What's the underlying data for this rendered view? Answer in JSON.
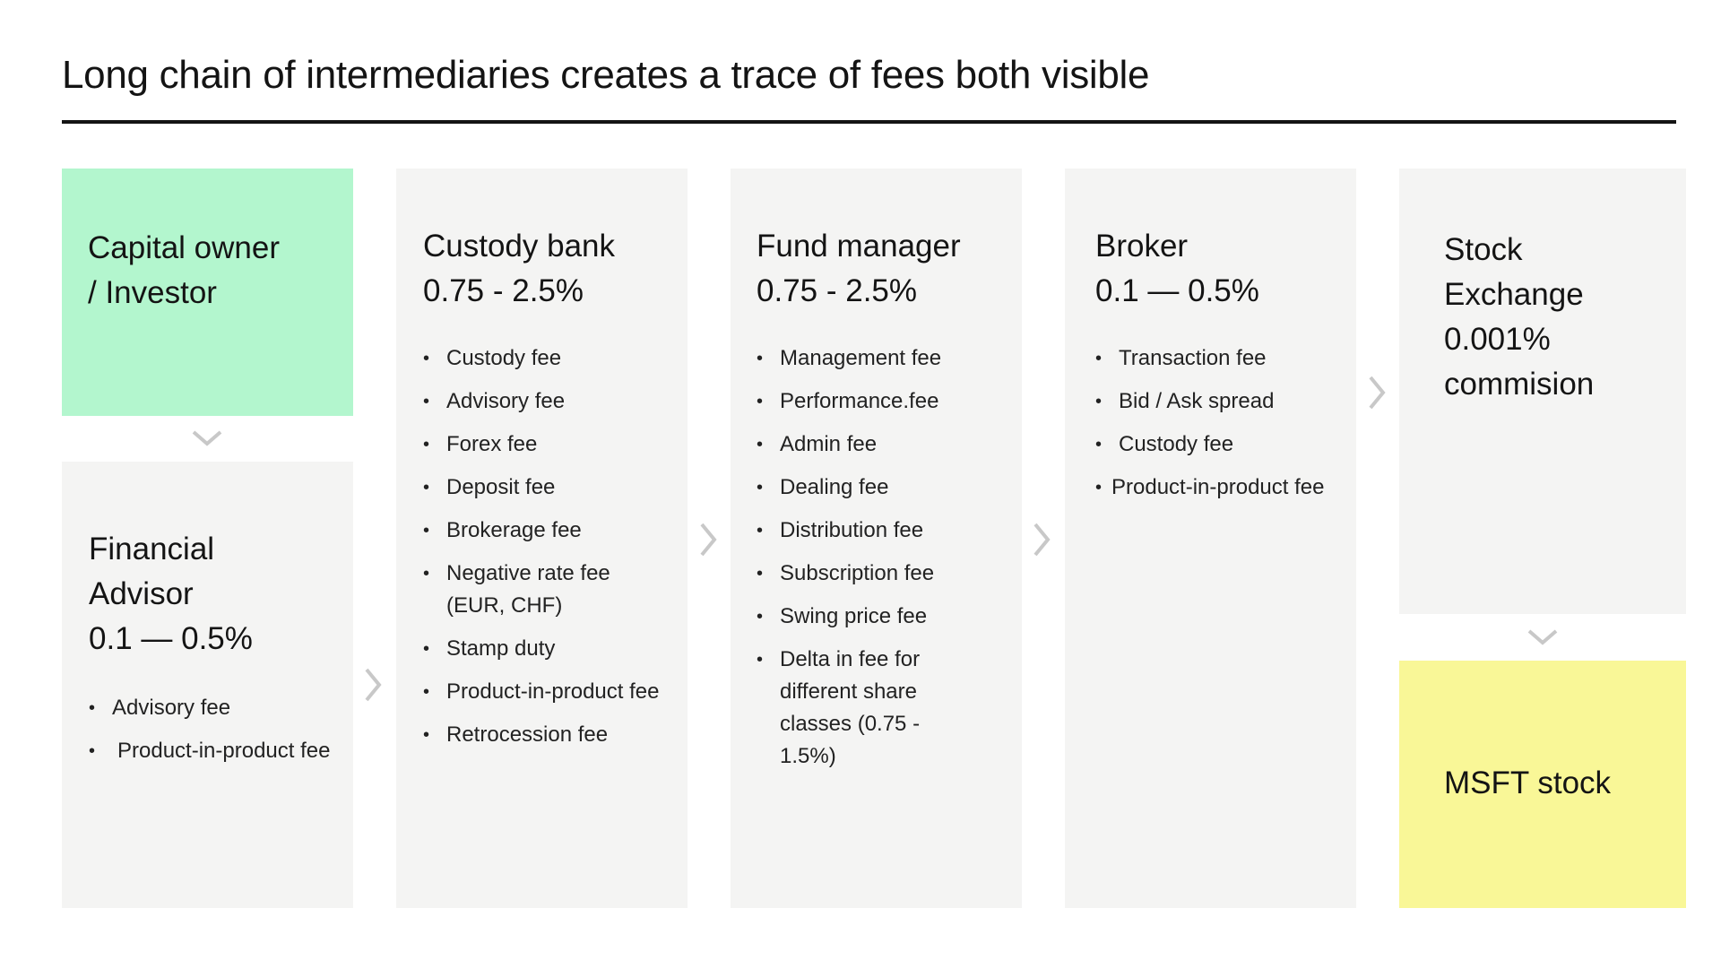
{
  "title": "Long chain of intermediaries creates a trace of fees both visible",
  "colors": {
    "investor_card": "#b3f6ce",
    "stock_card": "#f9f797",
    "neutral_card": "#f4f4f3",
    "arrow": "#c8c8c8",
    "text": "#141414"
  },
  "investor": {
    "line1": "Capital owner",
    "line2": "/ Investor"
  },
  "advisor": {
    "line1": "Financial",
    "line2": "Advisor",
    "rate": "0.1 — 0.5%",
    "fees": [
      "Advisory fee",
      "Product-in-product fee"
    ]
  },
  "custody": {
    "name": "Custody bank",
    "rate": "0.75 - 2.5%",
    "fees": [
      "Custody fee",
      "Advisory fee",
      "Forex fee",
      "Deposit fee",
      "Brokerage fee",
      "Negative rate fee (EUR, CHF)",
      "Stamp duty",
      "Product-in-product fee",
      "Retrocession fee"
    ]
  },
  "fund": {
    "name": "Fund manager",
    "rate": "0.75 - 2.5%",
    "fees": [
      "Management fee",
      "Performance.fee",
      "Admin fee",
      "Dealing fee",
      "Distribution fee",
      "Subscription fee",
      "Swing price fee",
      "Delta in fee for different share classes (0.75 - 1.5%)"
    ]
  },
  "broker": {
    "name": "Broker",
    "rate": "0.1 — 0.5%",
    "fees": [
      "Transaction fee",
      "Bid / Ask spread",
      "Custody fee",
      "Product-in-product fee"
    ]
  },
  "exchange": {
    "line1": "Stock",
    "line2": "Exchange",
    "rate": "0.001%",
    "note": "commision"
  },
  "stock": {
    "label": "MSFT stock"
  },
  "icons": {
    "down": "chevron-down-icon",
    "right": "chevron-right-icon"
  }
}
